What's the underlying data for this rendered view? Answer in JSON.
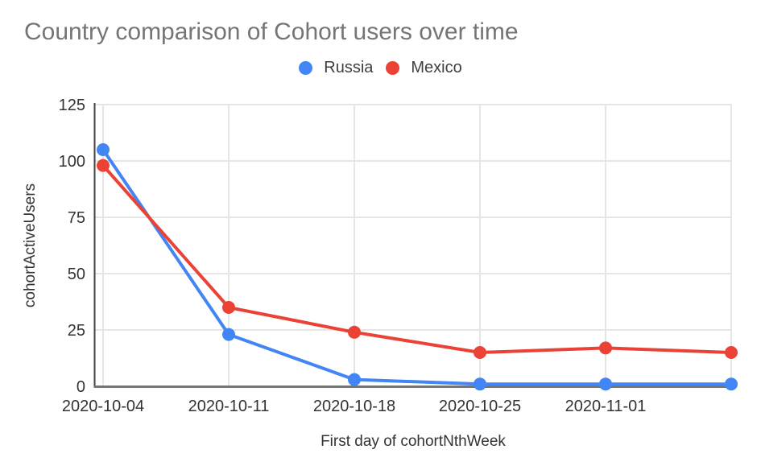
{
  "chart_data": {
    "type": "line",
    "title": "Country comparison of Cohort users over time",
    "xlabel": "First day of cohortNthWeek",
    "ylabel": "cohortActiveUsers",
    "categories": [
      "2020-10-04",
      "2020-10-11",
      "2020-10-18",
      "2020-10-25",
      "2020-11-01",
      ""
    ],
    "series": [
      {
        "name": "Russia",
        "color": "#4285f4",
        "values": [
          105,
          23,
          3,
          1,
          1,
          1
        ]
      },
      {
        "name": "Mexico",
        "color": "#ea4335",
        "values": [
          98,
          35,
          24,
          15,
          17,
          15
        ]
      }
    ],
    "ylim": [
      0,
      125
    ],
    "yticks": [
      0,
      25,
      50,
      75,
      100,
      125
    ],
    "grid": true,
    "legend_position": "top"
  },
  "colors": {
    "title_text": "#757575",
    "axis_text": "#333333",
    "legend_text": "#3c4043",
    "gridline": "#e6e6e6",
    "y_axis_line": "#424242",
    "x_axis_line": "#757575",
    "background": "#ffffff"
  }
}
